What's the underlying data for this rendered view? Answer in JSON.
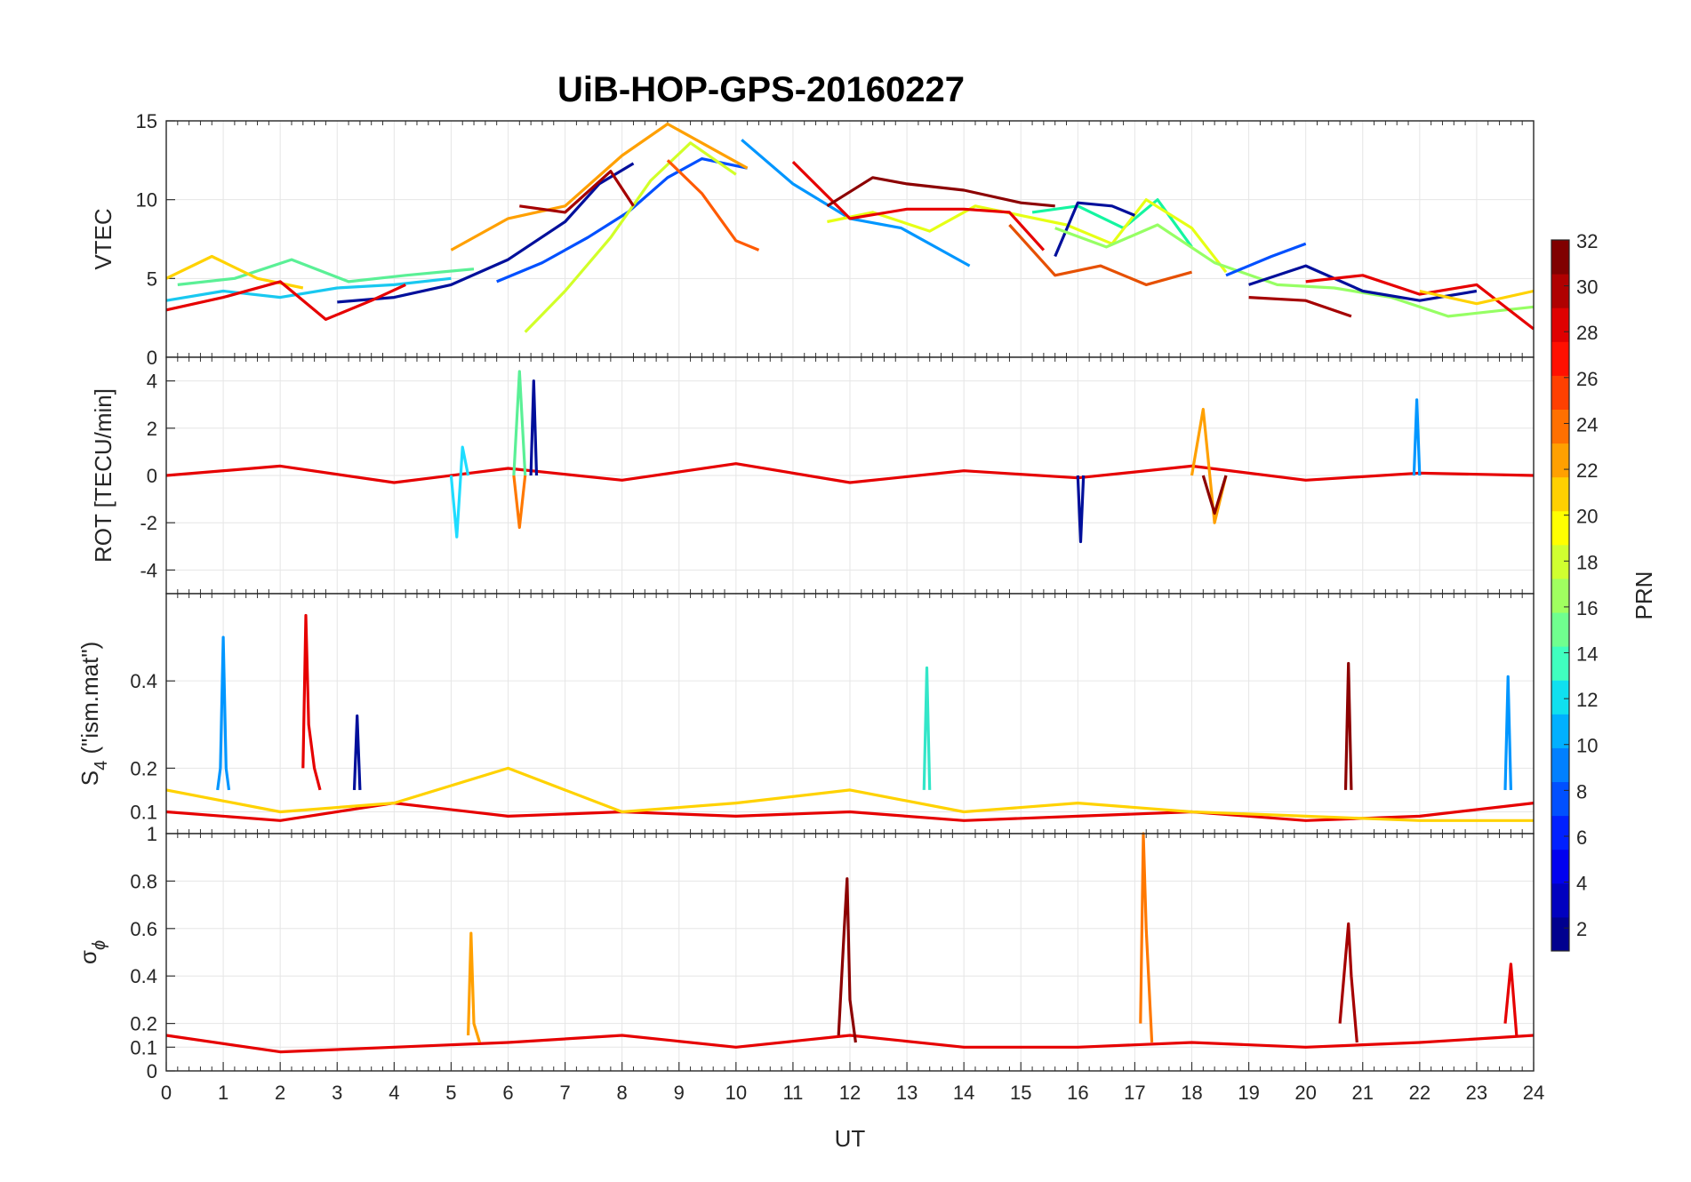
{
  "chart_data": {
    "type": "line",
    "title": "UiB-HOP-GPS-20160227",
    "xlabel": "UT",
    "xlim": [
      0,
      24
    ],
    "x_ticks": [
      "0",
      "1",
      "2",
      "3",
      "4",
      "5",
      "6",
      "7",
      "8",
      "9",
      "10",
      "11",
      "12",
      "13",
      "14",
      "15",
      "16",
      "17",
      "18",
      "19",
      "20",
      "21",
      "22",
      "23",
      "24"
    ],
    "grid": true,
    "panels": [
      {
        "id": "vtec",
        "ylabel": "VTEC",
        "ylim": [
          0,
          15
        ],
        "y_ticks": [
          {
            "v": 0,
            "t": "0"
          },
          {
            "v": 5,
            "t": "5"
          },
          {
            "v": 10,
            "t": "10"
          },
          {
            "v": 15,
            "t": "15"
          }
        ],
        "series": [
          {
            "color": "#000F9B",
            "x": [
              3.0,
              4.0,
              5.0,
              6.0,
              7.0,
              7.6,
              8.2
            ],
            "y": [
              3.5,
              3.8,
              4.6,
              6.2,
              8.6,
              11.0,
              12.3
            ]
          },
          {
            "color": "#0050FF",
            "x": [
              5.8,
              6.6,
              7.4,
              8.1,
              8.8,
              9.4,
              10.2
            ],
            "y": [
              4.8,
              6.0,
              7.6,
              9.2,
              11.4,
              12.6,
              12.0
            ]
          },
          {
            "color": "#0096FF",
            "x": [
              10.1,
              11.0,
              12.0,
              12.9,
              13.6,
              14.1
            ],
            "y": [
              13.8,
              11.0,
              8.8,
              8.2,
              6.8,
              5.8
            ]
          },
          {
            "color": "#19C8F0",
            "x": [
              0.0,
              1.0,
              2.0,
              3.0,
              4.0,
              5.0
            ],
            "y": [
              3.6,
              4.2,
              3.8,
              4.4,
              4.6,
              5.0
            ]
          },
          {
            "color": "#5AF096",
            "x": [
              0.2,
              1.2,
              2.2,
              3.2,
              4.2,
              5.4
            ],
            "y": [
              4.6,
              5.0,
              6.2,
              4.8,
              5.2,
              5.6
            ]
          },
          {
            "color": "#D2FF28",
            "x": [
              6.3,
              7.0,
              7.8,
              8.5,
              9.2,
              10.0
            ],
            "y": [
              1.6,
              4.2,
              7.6,
              11.2,
              13.6,
              11.6
            ]
          },
          {
            "color": "#FFD200",
            "x": [
              0.0,
              0.8,
              1.6,
              2.4
            ],
            "y": [
              5.0,
              6.4,
              5.0,
              4.4
            ]
          },
          {
            "color": "#FFA000",
            "x": [
              5.0,
              6.0,
              7.0,
              8.0,
              8.8,
              9.4,
              10.2
            ],
            "y": [
              6.8,
              8.8,
              9.6,
              12.8,
              14.8,
              13.6,
              12.0
            ]
          },
          {
            "color": "#FF5A00",
            "x": [
              8.8,
              9.4,
              10.0,
              10.4
            ],
            "y": [
              12.5,
              10.4,
              7.4,
              6.8
            ]
          },
          {
            "color": "#E60000",
            "x": [
              0.0,
              1.0,
              2.0,
              2.8,
              3.6,
              4.2
            ],
            "y": [
              3.0,
              3.8,
              4.8,
              2.4,
              3.6,
              4.6
            ]
          },
          {
            "color": "#A50000",
            "x": [
              6.2,
              7.0,
              7.8,
              8.2
            ],
            "y": [
              9.6,
              9.2,
              11.8,
              9.6
            ]
          },
          {
            "color": "#E65000",
            "x": [
              14.8,
              15.6,
              16.4,
              17.2,
              18.0
            ],
            "y": [
              8.4,
              5.2,
              5.8,
              4.6,
              5.4
            ]
          },
          {
            "color": "#14F5A0",
            "x": [
              15.2,
              16.0,
              16.8,
              17.4,
              18.0
            ],
            "y": [
              9.2,
              9.6,
              8.2,
              10.0,
              7.0
            ]
          },
          {
            "color": "#E6FF14",
            "x": [
              11.6,
              12.4,
              13.4,
              14.2,
              15.0,
              15.8,
              16.6,
              17.2,
              18.0,
              18.6
            ],
            "y": [
              8.6,
              9.2,
              8.0,
              9.6,
              9.0,
              8.4,
              7.2,
              10.0,
              8.2,
              5.4
            ]
          },
          {
            "color": "#000F9B",
            "x": [
              15.6,
              16.0,
              16.6,
              17.0
            ],
            "y": [
              6.4,
              9.8,
              9.6,
              9.0
            ]
          },
          {
            "color": "#96FF64",
            "x": [
              15.6,
              16.5,
              17.4,
              18.4,
              19.5,
              20.5,
              21.5,
              22.5,
              23.5,
              24.0
            ],
            "y": [
              8.2,
              7.0,
              8.4,
              6.0,
              4.6,
              4.4,
              3.8,
              2.6,
              3.0,
              3.2
            ]
          },
          {
            "color": "#0050FF",
            "x": [
              18.6,
              19.4,
              20.0
            ],
            "y": [
              5.2,
              6.4,
              7.2
            ]
          },
          {
            "color": "#000F9B",
            "x": [
              19.0,
              20.0,
              21.0,
              22.0,
              23.0
            ],
            "y": [
              4.6,
              5.8,
              4.2,
              3.6,
              4.2
            ]
          },
          {
            "color": "#E60000",
            "x": [
              11.0,
              12.0,
              13.0,
              14.0,
              14.8,
              15.4
            ],
            "y": [
              12.4,
              8.8,
              9.4,
              9.4,
              9.2,
              6.8
            ]
          },
          {
            "color": "#8C0000",
            "x": [
              11.6,
              12.4,
              13.0,
              14.0,
              15.0,
              15.6
            ],
            "y": [
              9.6,
              11.4,
              11.0,
              10.6,
              9.8,
              9.6
            ]
          },
          {
            "color": "#A50000",
            "x": [
              19.0,
              20.0,
              20.8
            ],
            "y": [
              3.8,
              3.6,
              2.6
            ]
          },
          {
            "color": "#E60000",
            "x": [
              20.0,
              21.0,
              22.0,
              23.0,
              24.0
            ],
            "y": [
              4.8,
              5.2,
              4.0,
              4.6,
              1.8
            ]
          },
          {
            "color": "#FFD200",
            "x": [
              22.0,
              23.0,
              24.0
            ],
            "y": [
              4.2,
              3.4,
              4.2
            ]
          }
        ]
      },
      {
        "id": "rot",
        "ylabel": "ROT [TECU/min]",
        "ylim": [
          -5,
          5
        ],
        "y_ticks": [
          {
            "v": -4,
            "t": "-4"
          },
          {
            "v": -2,
            "t": "-2"
          },
          {
            "v": 0,
            "t": "0"
          },
          {
            "v": 2,
            "t": "2"
          },
          {
            "v": 4,
            "t": "4"
          }
        ],
        "series": [
          {
            "color": "#E60000",
            "x": [
              0.0,
              2.0,
              4.0,
              6.0,
              8.0,
              10.0,
              12.0,
              14.0,
              16.0,
              18.0,
              20.0,
              22.0,
              24.0
            ],
            "y": [
              0,
              0.4,
              -0.3,
              0.3,
              -0.2,
              0.5,
              -0.3,
              0.2,
              -0.1,
              0.4,
              -0.2,
              0.1,
              0
            ]
          },
          {
            "color": "#1EDCFF",
            "x": [
              5.0,
              5.1,
              5.2,
              5.3
            ],
            "y": [
              0,
              -2.6,
              1.2,
              0
            ]
          },
          {
            "color": "#5AF096",
            "x": [
              6.1,
              6.2,
              6.3
            ],
            "y": [
              0,
              4.4,
              0
            ]
          },
          {
            "color": "#000F9B",
            "x": [
              6.4,
              6.45,
              6.5
            ],
            "y": [
              0,
              4.0,
              0
            ]
          },
          {
            "color": "#FF7800",
            "x": [
              6.1,
              6.2,
              6.3
            ],
            "y": [
              0,
              -2.2,
              0
            ]
          },
          {
            "color": "#000F9B",
            "x": [
              16.0,
              16.05,
              16.1
            ],
            "y": [
              0,
              -2.8,
              0
            ]
          },
          {
            "color": "#0096FF",
            "x": [
              21.9,
              21.95,
              22.0
            ],
            "y": [
              0,
              3.2,
              0
            ]
          },
          {
            "color": "#FFA000",
            "x": [
              18.0,
              18.2,
              18.4,
              18.6
            ],
            "y": [
              0,
              2.8,
              -2.0,
              0
            ]
          },
          {
            "color": "#8C0000",
            "x": [
              18.2,
              18.4,
              18.6
            ],
            "y": [
              0,
              -1.6,
              0
            ]
          }
        ]
      },
      {
        "id": "s4",
        "ylabel": "S",
        "ylabel_sub": "4",
        "ylabel_rest": " (\"ism.mat\")",
        "ylim": [
          0.05,
          0.6
        ],
        "y_ticks": [
          {
            "v": 0.1,
            "t": "0.1"
          },
          {
            "v": 0.2,
            "t": "0.2"
          },
          {
            "v": 0.4,
            "t": "0.4"
          }
        ],
        "series": [
          {
            "color": "#0096FF",
            "x": [
              0.9,
              0.95,
              1.0,
              1.05,
              1.1
            ],
            "y": [
              0.15,
              0.2,
              0.5,
              0.2,
              0.15
            ]
          },
          {
            "color": "#E60000",
            "x": [
              2.4,
              2.45,
              2.5,
              2.6,
              2.7
            ],
            "y": [
              0.2,
              0.55,
              0.3,
              0.2,
              0.15
            ]
          },
          {
            "color": "#000F9B",
            "x": [
              3.3,
              3.35,
              3.4
            ],
            "y": [
              0.15,
              0.32,
              0.15
            ]
          },
          {
            "color": "#32E6C8",
            "x": [
              13.3,
              13.35,
              13.4
            ],
            "y": [
              0.15,
              0.43,
              0.15
            ]
          },
          {
            "color": "#8C0000",
            "x": [
              20.7,
              20.75,
              20.8
            ],
            "y": [
              0.15,
              0.44,
              0.15
            ]
          },
          {
            "color": "#0096FF",
            "x": [
              23.5,
              23.55,
              23.6
            ],
            "y": [
              0.15,
              0.41,
              0.15
            ]
          },
          {
            "color": "#E60000",
            "x": [
              0.0,
              2.0,
              4.0,
              6.0,
              8.0,
              10.0,
              12.0,
              14.0,
              16.0,
              18.0,
              20.0,
              22.0,
              24.0
            ],
            "y": [
              0.1,
              0.08,
              0.12,
              0.09,
              0.1,
              0.09,
              0.1,
              0.08,
              0.09,
              0.1,
              0.08,
              0.09,
              0.12
            ]
          },
          {
            "color": "#FFD200",
            "x": [
              0.0,
              2.0,
              4.0,
              6.0,
              8.0,
              10.0,
              12.0,
              14.0,
              16.0,
              18.0,
              20.0,
              22.0,
              24.0
            ],
            "y": [
              0.15,
              0.1,
              0.12,
              0.2,
              0.1,
              0.12,
              0.15,
              0.1,
              0.12,
              0.1,
              0.09,
              0.08,
              0.08
            ]
          }
        ]
      },
      {
        "id": "sigma",
        "ylabel": "σ",
        "ylabel_sub": "ϕ",
        "ylim": [
          0,
          1
        ],
        "y_ticks": [
          {
            "v": 0,
            "t": "0"
          },
          {
            "v": 0.1,
            "t": "0.1"
          },
          {
            "v": 0.2,
            "t": "0.2"
          },
          {
            "v": 0.4,
            "t": "0.4"
          },
          {
            "v": 0.6,
            "t": "0.6"
          },
          {
            "v": 0.8,
            "t": "0.8"
          }
        ],
        "top_tick_label": "1",
        "series": [
          {
            "color": "#E60000",
            "x": [
              0.0,
              2.0,
              4.0,
              6.0,
              8.0,
              10.0,
              12.0,
              14.0,
              16.0,
              18.0,
              20.0,
              22.0,
              24.0
            ],
            "y": [
              0.15,
              0.08,
              0.1,
              0.12,
              0.15,
              0.1,
              0.15,
              0.1,
              0.1,
              0.12,
              0.1,
              0.12,
              0.15
            ]
          },
          {
            "color": "#FFA000",
            "x": [
              5.3,
              5.35,
              5.4,
              5.5
            ],
            "y": [
              0.15,
              0.58,
              0.2,
              0.12
            ]
          },
          {
            "color": "#8C0000",
            "x": [
              11.8,
              11.9,
              11.95,
              12.0,
              12.1
            ],
            "y": [
              0.15,
              0.6,
              0.81,
              0.3,
              0.12
            ]
          },
          {
            "color": "#FF7800",
            "x": [
              17.1,
              17.15,
              17.2,
              17.3
            ],
            "y": [
              0.2,
              1.0,
              0.6,
              0.12
            ]
          },
          {
            "color": "#A50000",
            "x": [
              20.6,
              20.75,
              20.8,
              20.9
            ],
            "y": [
              0.2,
              0.62,
              0.4,
              0.12
            ]
          },
          {
            "color": "#E60000",
            "x": [
              23.5,
              23.6,
              23.7
            ],
            "y": [
              0.2,
              0.45,
              0.15
            ]
          }
        ]
      }
    ],
    "colorbar": {
      "label": "PRN",
      "range": [
        1,
        32
      ],
      "ticks": [
        "2",
        "4",
        "6",
        "8",
        "10",
        "12",
        "14",
        "16",
        "18",
        "20",
        "22",
        "24",
        "26",
        "28",
        "30",
        "32"
      ],
      "colors": [
        "#00008F",
        "#0000BF",
        "#0000EF",
        "#0020FF",
        "#0050FF",
        "#0080FF",
        "#00B0FF",
        "#10E0EF",
        "#40FFBF",
        "#70FF8F",
        "#A0FF60",
        "#D0FF30",
        "#FFFF00",
        "#FFD000",
        "#FFA000",
        "#FF7000",
        "#FF4000",
        "#FF1000",
        "#DF0000",
        "#AF0000",
        "#800000"
      ]
    }
  }
}
